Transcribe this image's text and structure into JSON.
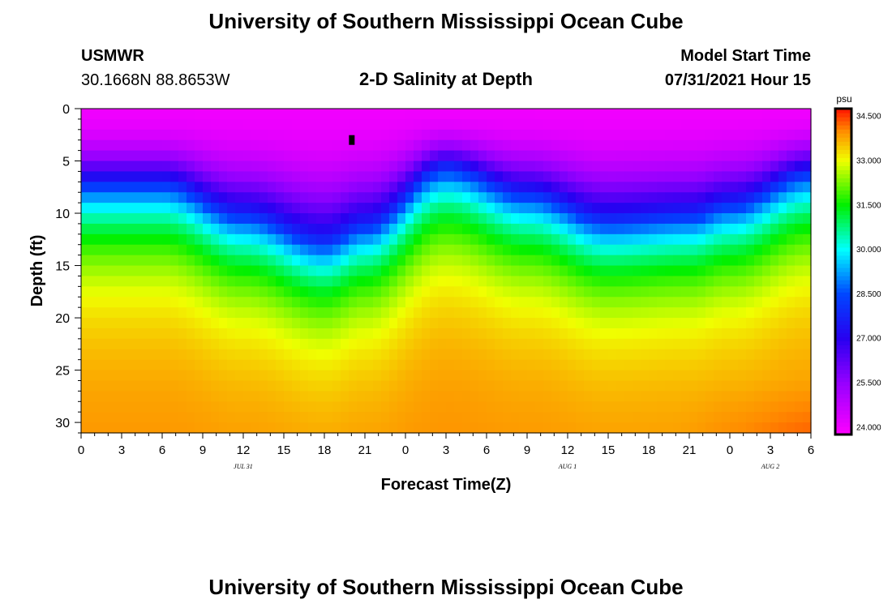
{
  "header": {
    "title": "University of Southern Mississippi Ocean Cube",
    "station": "USMWR",
    "coords": "30.1668N  88.8653W",
    "plot_title": "2-D Salinity at Depth",
    "model_start_label": "Model Start Time",
    "model_start_value": "07/31/2021 Hour 15"
  },
  "footer": {
    "title": "University of Southern Mississippi Ocean Cube"
  },
  "colorbar": {
    "unit": "psu",
    "ticks": [
      "34.500",
      "33.000",
      "31.500",
      "30.000",
      "28.500",
      "27.000",
      "25.500",
      "24.000"
    ],
    "tick_values": [
      34.5,
      33.0,
      31.5,
      30.0,
      28.5,
      27.0,
      25.5,
      24.0
    ],
    "range": [
      23.75,
      34.75
    ]
  },
  "chart_data": {
    "type": "heatmap",
    "title": "2-D Salinity at Depth",
    "xlabel": "Forecast Time(Z)",
    "ylabel": "Depth (ft)",
    "x_hours_range": [
      0,
      54
    ],
    "ylim": [
      0,
      31
    ],
    "x_tick_hours": [
      0,
      3,
      6,
      9,
      12,
      15,
      18,
      21,
      24,
      27,
      30,
      33,
      36,
      39,
      42,
      45,
      48,
      51,
      54
    ],
    "x_tick_labels": [
      "0",
      "3",
      "6",
      "9",
      "12",
      "15",
      "18",
      "21",
      "0",
      "3",
      "6",
      "9",
      "12",
      "15",
      "18",
      "21",
      "0",
      "3",
      "6"
    ],
    "y_ticks": [
      0,
      5,
      10,
      15,
      20,
      25,
      30
    ],
    "y_tick_labels": [
      "0",
      "5",
      "10",
      "15",
      "20",
      "25",
      "30"
    ],
    "date_markers": [
      {
        "hour": 12,
        "label": "JUL 31"
      },
      {
        "hour": 36,
        "label": "AUG 1"
      },
      {
        "hour": 51,
        "label": "AUG 2"
      }
    ],
    "units": "psu",
    "surface_salinity_approx": 24.0,
    "bottom_salinity_approx": 34.0,
    "halocline_depth_ft": [
      {
        "hour": 0,
        "depth": 7
      },
      {
        "hour": 6,
        "depth": 7
      },
      {
        "hour": 12,
        "depth": 10
      },
      {
        "hour": 18,
        "depth": 12.5
      },
      {
        "hour": 21,
        "depth": 11
      },
      {
        "hour": 27,
        "depth": 5.5
      },
      {
        "hour": 33,
        "depth": 8
      },
      {
        "hour": 39,
        "depth": 10.5
      },
      {
        "hour": 45,
        "depth": 10
      },
      {
        "hour": 48,
        "depth": 9
      },
      {
        "hour": 54,
        "depth": 6
      }
    ],
    "marker": {
      "hour": 20,
      "depth": 3
    }
  }
}
